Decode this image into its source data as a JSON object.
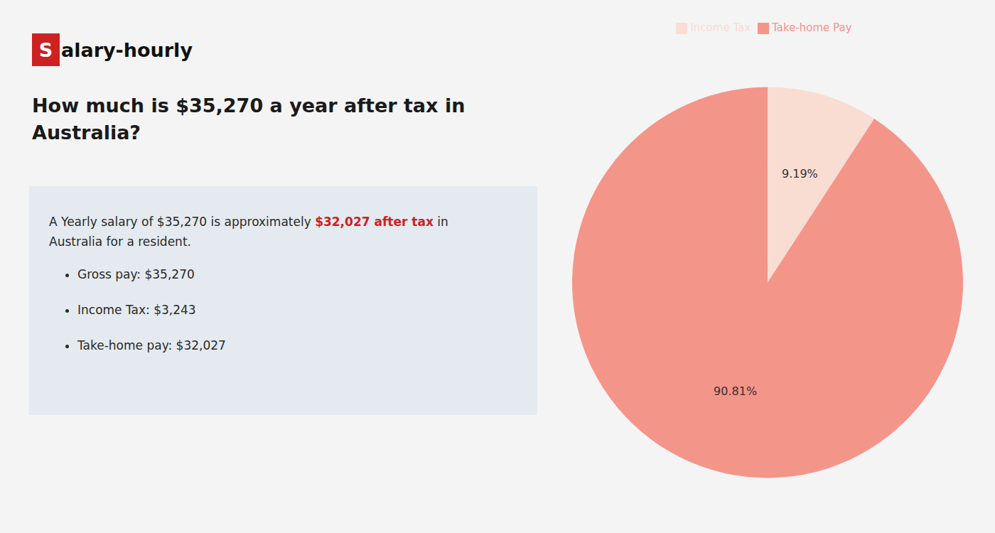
{
  "chart_data": {
    "type": "pie",
    "title": "How much is $35,270 a year after tax in\nAustralia?",
    "annotations": [
      "S",
      "alary-hourly",
      "A Yearly salary of $35,270 is approximately ",
      "$32,027 after tax",
      " in",
      "Australia for a resident.",
      "Gross pay: $35,270",
      "Income Tax: $3,243",
      "Take-home pay: $32,027"
    ],
    "categories": [
      "Income Tax",
      "Take-home Pay"
    ],
    "values": [
      9.19,
      90.81
    ],
    "value_labels": [
      "9.19%",
      "90.81%"
    ],
    "colors": [
      "#f9dcd2",
      "#f4958a"
    ],
    "data_labels": true,
    "legend": "top"
  }
}
